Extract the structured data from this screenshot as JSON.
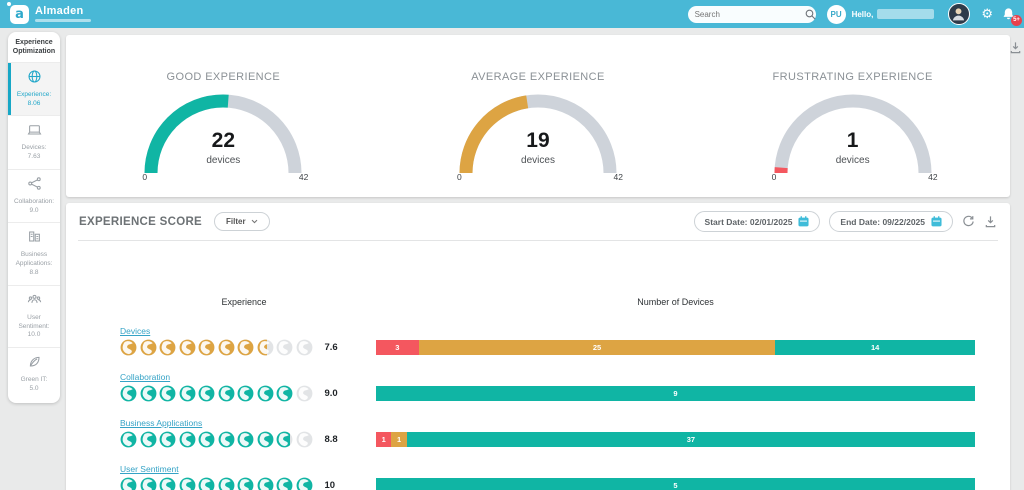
{
  "header": {
    "brand": "Almaden",
    "brand_initial": "a",
    "search_placeholder": "Search",
    "user_initials": "PU",
    "greeting": "Hello,",
    "notification_badge": "5+"
  },
  "sidebar": {
    "title": "Experience Optimization",
    "items": [
      {
        "id": "experience",
        "icon": "globe-icon",
        "label": "Experience:",
        "value": "8.06",
        "progress": 80.6,
        "bar_color": "#DDA443",
        "active": true
      },
      {
        "id": "devices",
        "icon": "devices-icon",
        "label": "Devices:",
        "value": "7.63",
        "progress": 76.3,
        "bar_color": "#DDA443",
        "active": false
      },
      {
        "id": "collaboration",
        "icon": "collaboration-icon",
        "label": "Collaboration:",
        "value": "9.0",
        "progress": 90,
        "bar_color": "#10B5A4",
        "active": false
      },
      {
        "id": "business-applications",
        "icon": "business-apps-icon",
        "label": "Business Applications:",
        "value": "8.8",
        "progress": 88,
        "bar_color": "#10B5A4",
        "active": false
      },
      {
        "id": "user-sentiment",
        "icon": "user-sentiment-icon",
        "label": "User Sentiment:",
        "value": "10.0",
        "progress": 100,
        "bar_color": "#10B5A4",
        "active": false
      },
      {
        "id": "green-it",
        "icon": "green-it-icon",
        "label": "Green IT:",
        "value": "5.0",
        "progress": 50,
        "bar_color": "#F4575F",
        "active": false
      }
    ]
  },
  "score_section": {
    "title": "EXPERIENCE SCORE",
    "filter_label": "Filter",
    "start_date": "Start Date: 02/01/2025",
    "end_date": "End Date: 09/22/2025",
    "columns": {
      "experience": "Experience",
      "devices": "Number of Devices"
    }
  },
  "chart_data": [
    {
      "type": "gauge",
      "title": "GOOD EXPERIENCE",
      "value": 22,
      "unit": "devices",
      "min": 0,
      "max": 42,
      "color": "#10B5A4",
      "track_color": "#CED3DA"
    },
    {
      "type": "gauge",
      "title": "AVERAGE EXPERIENCE",
      "value": 19,
      "unit": "devices",
      "min": 0,
      "max": 42,
      "color": "#DDA443",
      "track_color": "#CED3DA"
    },
    {
      "type": "gauge",
      "title": "FRUSTRATING EXPERIENCE",
      "value": 1,
      "unit": "devices",
      "min": 0,
      "max": 42,
      "color": "#F4575F",
      "track_color": "#CED3DA"
    },
    {
      "type": "bar",
      "subtype": "horizontal-stacked",
      "title": "EXPERIENCE SCORE",
      "x_axis_label": "Number of Devices",
      "rating_max": 10,
      "gray_globe_color": "#E2E4E6",
      "rows": [
        {
          "label": "Devices",
          "score": 7.6,
          "score_display": "7.6",
          "rating_color": "#DDA443",
          "segments": [
            {
              "value": 3,
              "label": "3",
              "color": "#F4575F"
            },
            {
              "value": 25,
              "label": "25",
              "color": "#DDA443"
            },
            {
              "value": 14,
              "label": "14",
              "color": "#10B5A4"
            }
          ]
        },
        {
          "label": "Collaboration",
          "score": 9.0,
          "score_display": "9.0",
          "rating_color": "#10B5A4",
          "segments": [
            {
              "value": 9,
              "label": "9",
              "color": "#10B5A4"
            }
          ]
        },
        {
          "label": "Business Applications",
          "score": 8.8,
          "score_display": "8.8",
          "rating_color": "#10B5A4",
          "segments": [
            {
              "value": 1,
              "label": "1",
              "color": "#F4575F"
            },
            {
              "value": 1,
              "label": "1",
              "color": "#DDA443"
            },
            {
              "value": 37,
              "label": "37",
              "color": "#10B5A4"
            }
          ]
        },
        {
          "label": "User Sentiment",
          "score": 10,
          "score_display": "10",
          "rating_color": "#10B5A4",
          "segments": [
            {
              "value": 5,
              "label": "5",
              "color": "#10B5A4"
            }
          ]
        }
      ]
    }
  ]
}
